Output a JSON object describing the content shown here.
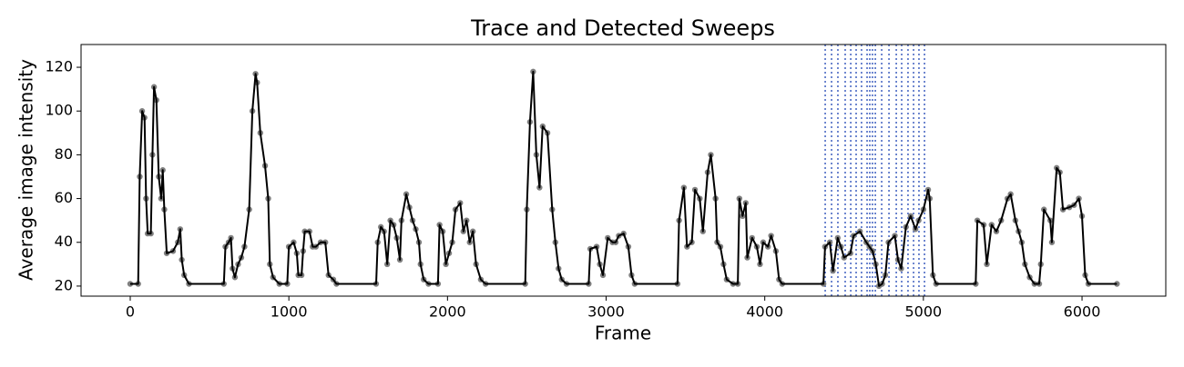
{
  "chart_data": {
    "type": "line",
    "title": "Trace and Detected Sweeps",
    "x_label": "Frame",
    "y_label": "Average image intensity",
    "xlim": [
      -310,
      6528
    ],
    "ylim": [
      15.4,
      130.4
    ],
    "xticks": [
      0,
      1000,
      2000,
      3000,
      4000,
      5000,
      6000
    ],
    "yticks": [
      20,
      40,
      60,
      80,
      100,
      120
    ],
    "color": "#000000",
    "point_color": "#808080",
    "sweep_color": "#4060c0",
    "x": [
      0,
      50,
      60,
      75,
      90,
      100,
      110,
      130,
      140,
      150,
      165,
      180,
      195,
      205,
      215,
      230,
      270,
      300,
      315,
      325,
      340,
      370,
      590,
      600,
      620,
      635,
      645,
      660,
      680,
      700,
      720,
      750,
      770,
      790,
      800,
      820,
      850,
      870,
      880,
      900,
      940,
      990,
      1000,
      1030,
      1050,
      1060,
      1080,
      1090,
      1100,
      1130,
      1150,
      1170,
      1200,
      1230,
      1250,
      1280,
      1300,
      1550,
      1560,
      1580,
      1600,
      1620,
      1640,
      1660,
      1680,
      1700,
      1710,
      1740,
      1760,
      1780,
      1800,
      1820,
      1830,
      1850,
      1880,
      1940,
      1950,
      1970,
      1990,
      2010,
      2030,
      2050,
      2080,
      2100,
      2120,
      2140,
      2160,
      2180,
      2210,
      2240,
      2490,
      2500,
      2520,
      2540,
      2560,
      2580,
      2600,
      2630,
      2660,
      2680,
      2700,
      2720,
      2750,
      2890,
      2900,
      2940,
      2960,
      2980,
      3010,
      3040,
      3060,
      3080,
      3110,
      3140,
      3160,
      3180,
      3450,
      3460,
      3490,
      3510,
      3540,
      3560,
      3590,
      3610,
      3640,
      3660,
      3690,
      3700,
      3720,
      3740,
      3760,
      3800,
      3830,
      3840,
      3860,
      3880,
      3890,
      3920,
      3950,
      3970,
      3990,
      4020,
      4040,
      4070,
      4090,
      4110,
      4370,
      4380,
      4410,
      4430,
      4460,
      4480,
      4500,
      4540,
      4560,
      4600,
      4640,
      4660,
      4680,
      4700,
      4720,
      4740,
      4760,
      4780,
      4820,
      4840,
      4860,
      4890,
      4920,
      4950,
      4970,
      5000,
      5030,
      5040,
      5060,
      5080,
      5330,
      5340,
      5380,
      5400,
      5430,
      5460,
      5490,
      5530,
      5550,
      5580,
      5600,
      5620,
      5640,
      5670,
      5700,
      5730,
      5740,
      5760,
      5800,
      5810,
      5840,
      5860,
      5880,
      5920,
      5950,
      5980,
      6000,
      6020,
      6040,
      6220
    ],
    "values": [
      21,
      21,
      70,
      100,
      97,
      60,
      44,
      44,
      80,
      111,
      105,
      70,
      60,
      73,
      55,
      35,
      36,
      40,
      46,
      32,
      25,
      21,
      21,
      38,
      40,
      42,
      28,
      24,
      30,
      33,
      38,
      55,
      100,
      117,
      113,
      90,
      75,
      60,
      30,
      24,
      21,
      21,
      38,
      40,
      35,
      25,
      25,
      36,
      45,
      45,
      38,
      38,
      40,
      40,
      25,
      23,
      21,
      21,
      40,
      47,
      45,
      30,
      50,
      48,
      42,
      32,
      50,
      62,
      56,
      50,
      46,
      40,
      30,
      23,
      21,
      21,
      48,
      45,
      30,
      35,
      40,
      55,
      58,
      45,
      50,
      40,
      45,
      30,
      23,
      21,
      21,
      55,
      95,
      118,
      80,
      65,
      93,
      90,
      55,
      40,
      28,
      23,
      21,
      21,
      37,
      38,
      30,
      25,
      42,
      40,
      40,
      43,
      44,
      38,
      25,
      21,
      21,
      50,
      65,
      38,
      40,
      64,
      60,
      45,
      72,
      80,
      60,
      40,
      38,
      30,
      23,
      21,
      21,
      60,
      52,
      58,
      33,
      42,
      38,
      30,
      40,
      38,
      43,
      36,
      23,
      21,
      21,
      38,
      40,
      27,
      42,
      38,
      33,
      35,
      43,
      45,
      40,
      38,
      36,
      30,
      20,
      21,
      25,
      40,
      43,
      32,
      28,
      47,
      52,
      46,
      50,
      55,
      64,
      60,
      25,
      21,
      21,
      50,
      48,
      30,
      48,
      45,
      50,
      60,
      62,
      50,
      45,
      40,
      30,
      24,
      21,
      21,
      30,
      55,
      50,
      40,
      74,
      72,
      55,
      56,
      57,
      60,
      52,
      25,
      21,
      21
    ],
    "sweeps": [
      4381,
      4421,
      4461,
      4507,
      4542,
      4576,
      4610,
      4645,
      4662,
      4679,
      4697,
      4737,
      4783,
      4829,
      4863,
      4903,
      4938,
      4972,
      5007
    ]
  }
}
